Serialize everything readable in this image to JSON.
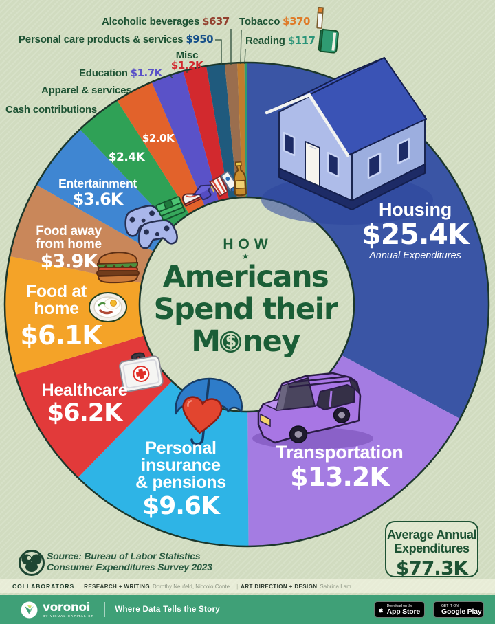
{
  "title": {
    "kicker": "HOW",
    "star": "★",
    "line1": "Americans",
    "line2": "Spend their",
    "line3_pre": "M",
    "coin_symbol": "$",
    "line3_post": "ney"
  },
  "chart_data": {
    "type": "pie",
    "title": "How Americans Spend their Money",
    "units": "average annual expenditures, USD",
    "legend_position": "around donut",
    "total": 77.3,
    "total_display": "$77.3K",
    "segments": [
      {
        "label": "Housing",
        "value": 25.4,
        "display": "$25.4K",
        "sublabel": "Annual Expenditures",
        "color": "#3a55a5",
        "value_color": "#ffffff"
      },
      {
        "label": "Transportation",
        "value": 13.2,
        "display": "$13.2K",
        "color": "#a47ce2",
        "value_color": "#ffffff"
      },
      {
        "label": "Personal insurance & pensions",
        "value": 9.6,
        "display": "$9.6K",
        "color": "#2eb4e6",
        "value_color": "#ffffff"
      },
      {
        "label": "Healthcare",
        "value": 6.2,
        "display": "$6.2K",
        "color": "#e23a3a",
        "value_color": "#ffffff"
      },
      {
        "label": "Food at home",
        "value": 6.1,
        "display": "$6.1K",
        "color": "#f4a328",
        "value_color": "#ffffff"
      },
      {
        "label": "Food away from home",
        "value": 3.9,
        "display": "$3.9K",
        "color": "#c9875a",
        "value_color": "#ffffff"
      },
      {
        "label": "Entertainment",
        "value": 3.6,
        "display": "$3.6K",
        "color": "#3f86d2",
        "value_color": "#ffffff"
      },
      {
        "label": "Cash contributions",
        "value": 2.4,
        "display": "$2.4K",
        "color": "#2fa156",
        "value_color": "#ffffff"
      },
      {
        "label": "Apparel & services",
        "value": 2.0,
        "display": "$2.0K",
        "color": "#e2622b",
        "value_color": "#ffffff"
      },
      {
        "label": "Education",
        "value": 1.7,
        "display": "$1.7K",
        "color": "#5a52c8",
        "value_color": "#5a52c8"
      },
      {
        "label": "Misc",
        "value": 1.2,
        "display": "$1.2K",
        "color": "#d2292e",
        "value_color": "#d2292e"
      },
      {
        "label": "Personal care products & services",
        "value": 0.95,
        "display": "$950",
        "color": "#1f5a7d",
        "value_color": "#17518a"
      },
      {
        "label": "Alcoholic beverages",
        "value": 0.637,
        "display": "$637",
        "color": "#9a6e4e",
        "value_color": "#93402e"
      },
      {
        "label": "Tobacco",
        "value": 0.37,
        "display": "$370",
        "color": "#c17d2e",
        "value_color": "#df7b28"
      },
      {
        "label": "Reading",
        "value": 0.117,
        "display": "$117",
        "color": "#2f9b72",
        "value_color": "#2a9478"
      }
    ]
  },
  "summary_box": {
    "line1": "Average Annual",
    "line2": "Expenditures",
    "value": "$77.3K"
  },
  "source": {
    "line1": "Source: Bureau of Labor Statistics",
    "line2": "Consumer Expenditures Survey 2023"
  },
  "collaborators": {
    "heading": "COLLABORATORS",
    "research_label": "RESEARCH + WRITING",
    "research_names": "Dorothy Neufeld, Niccolo Conte",
    "divider": "|",
    "design_label": "ART DIRECTION + DESIGN",
    "design_names": "Sabrina Lam"
  },
  "footer": {
    "brand": "voronoi",
    "brand_sub": "BY VISUAL CAPITALIST",
    "tagline": "Where Data Tells the Story",
    "appstore_line1": "Download on the",
    "appstore_line2": "App Store",
    "googleplay_line1": "GET IT ON",
    "googleplay_line2": "Google Play"
  },
  "colors": {
    "background": "#d3dec2",
    "outline": "#1c372b",
    "title_green": "#1b5e37",
    "footer_green": "#3fa077"
  }
}
